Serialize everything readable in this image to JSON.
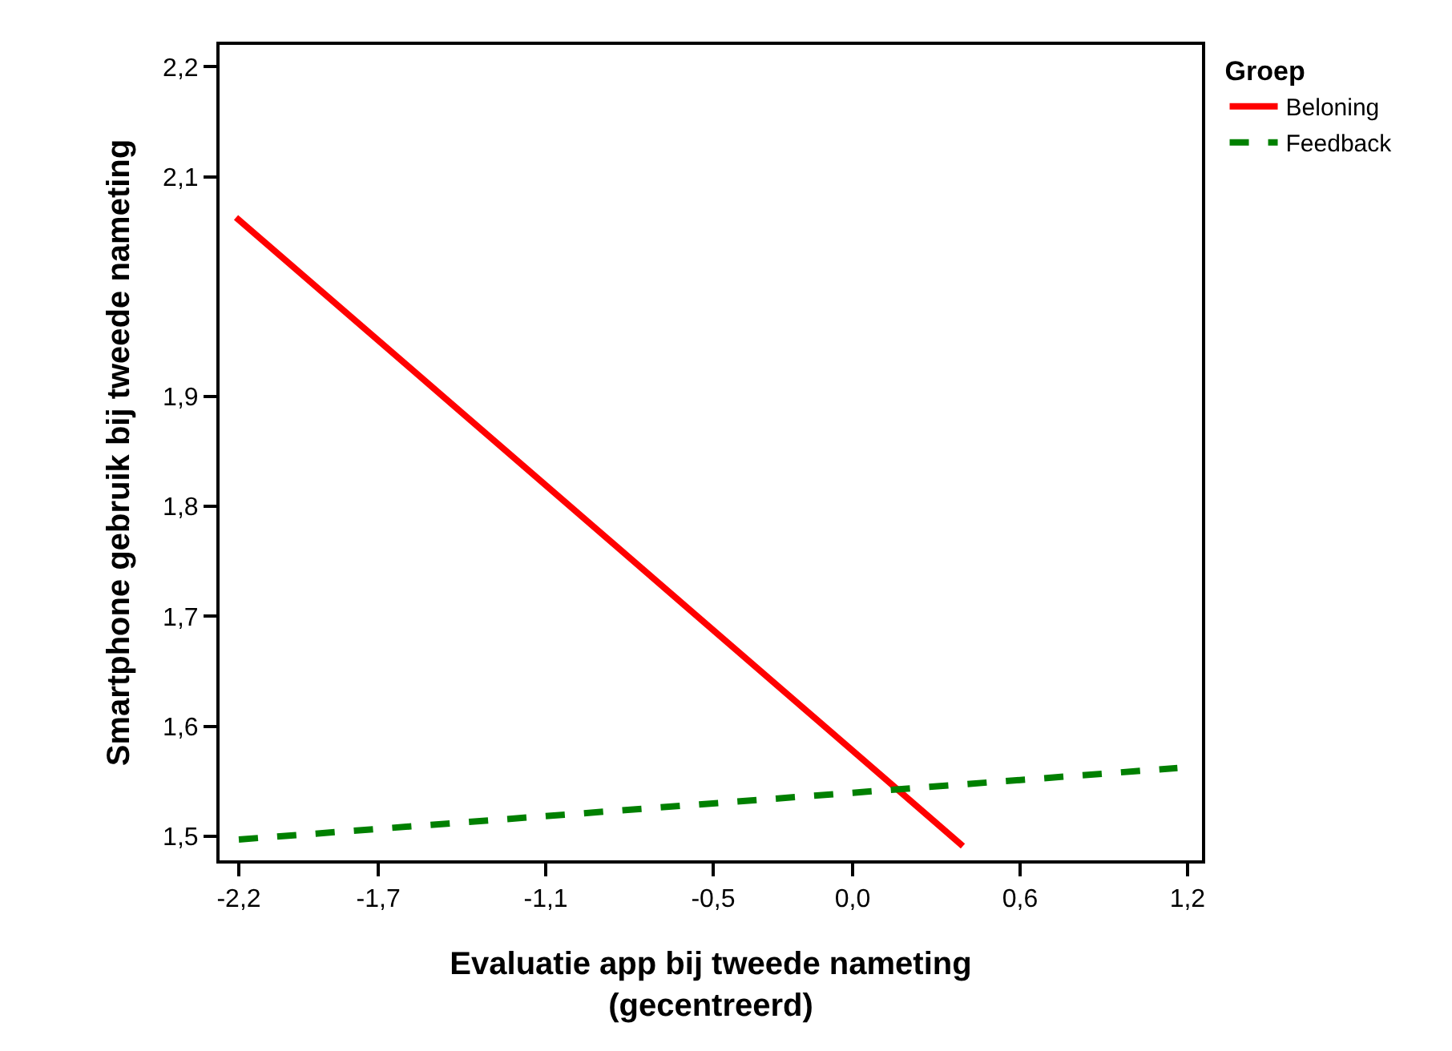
{
  "chart_data": {
    "type": "line",
    "xlabel": "Evaluatie app bij tweede nameting\n(gecentreerd)",
    "ylabel": "Smartphone gebruik bij tweede nameting",
    "legend_title": "Groep",
    "series": [
      {
        "name": "Beloning",
        "color": "#ff0000",
        "line_style": "solid",
        "x": [
          -2.21,
          0.395
        ],
        "values": [
          2.063,
          1.491
        ]
      },
      {
        "name": "Feedback",
        "color": "#008000",
        "line_style": "dashed",
        "x": [
          -2.2,
          1.164
        ],
        "values": [
          1.497,
          1.562
        ]
      }
    ],
    "xlim": [
      -2.269,
      1.252
    ],
    "xticks": [
      {
        "value": -2.2,
        "label": "-2,2"
      },
      {
        "value": -1.7,
        "label": "-1,7"
      },
      {
        "value": -1.1,
        "label": "-1,1"
      },
      {
        "value": -0.5,
        "label": "-0,5"
      },
      {
        "value": 0.0,
        "label": "0,0"
      },
      {
        "value": 0.6,
        "label": "0,6"
      },
      {
        "value": 1.2,
        "label": "1,2"
      }
    ],
    "ylim": [
      1.478,
      2.22
    ],
    "yticks": [
      {
        "value": 1.5,
        "label": "1,5"
      },
      {
        "value": 1.6,
        "label": "1,6"
      },
      {
        "value": 1.7,
        "label": "1,7"
      },
      {
        "value": 1.8,
        "label": "1,8"
      },
      {
        "value": 1.9,
        "label": "1,9"
      },
      {
        "value": 2.1,
        "label": "2,1"
      },
      {
        "value": 2.2,
        "label": "2,2"
      }
    ],
    "legend": "top right",
    "marker": "none"
  }
}
